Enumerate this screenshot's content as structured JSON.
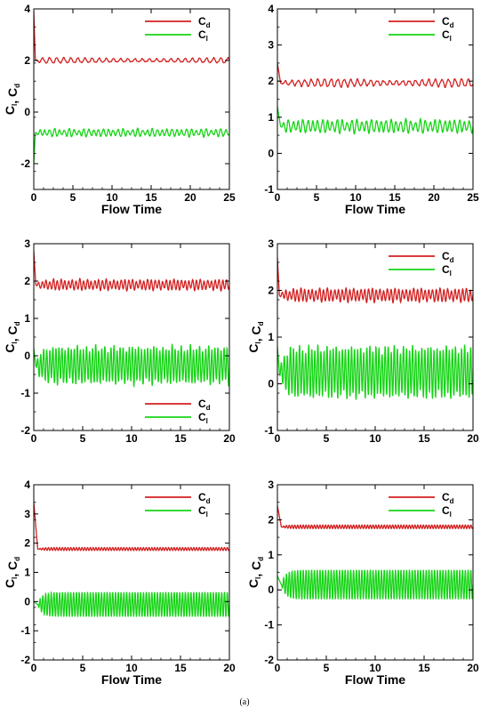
{
  "caption": "(a)",
  "colors": {
    "cd": "#d42020",
    "cl": "#16d416",
    "axis": "#000000"
  },
  "chart_data": [
    {
      "type": "line",
      "panel": "top-left",
      "xlabel": "Flow Time",
      "ylabel": "C_l, C_d",
      "xlim": [
        0,
        25
      ],
      "ylim": [
        -3,
        4
      ],
      "xticks": [
        0,
        5,
        10,
        15,
        20,
        25
      ],
      "yticks": [
        -2,
        0,
        2,
        4
      ],
      "legend": {
        "placement": "top-right"
      },
      "series": [
        {
          "name": "C_d",
          "key": "cd",
          "mean": 2.0,
          "amp": 0.08,
          "freq": 1.1,
          "noise": 0.05,
          "t0": 0.2,
          "spike": 3.9
        },
        {
          "name": "C_l",
          "key": "cl",
          "mean": -0.8,
          "amp": 0.12,
          "freq": 1.6,
          "noise": 0.06,
          "t0": 0.2,
          "spike": -2.0
        }
      ]
    },
    {
      "type": "line",
      "panel": "top-right",
      "xlabel": "Flow Time",
      "ylabel": "",
      "xlim": [
        0,
        25
      ],
      "ylim": [
        -1,
        4
      ],
      "xticks": [
        0,
        5,
        10,
        15,
        20,
        25
      ],
      "yticks": [
        -1,
        0,
        1,
        2,
        3,
        4
      ],
      "legend": {
        "placement": "top-right"
      },
      "series": [
        {
          "name": "C_d",
          "key": "cd",
          "mean": 1.95,
          "amp": 0.08,
          "freq": 1.2,
          "noise": 0.05,
          "t0": 0.4,
          "spike": 2.5
        },
        {
          "name": "C_l",
          "key": "cl",
          "mean": 0.75,
          "amp": 0.15,
          "freq": 1.6,
          "noise": 0.07,
          "t0": 0.4,
          "spike": 1.3
        }
      ]
    },
    {
      "type": "line",
      "panel": "middle-left",
      "xlabel": "",
      "ylabel": "C_l, C_d",
      "xlim": [
        0,
        20
      ],
      "ylim": [
        -2,
        3
      ],
      "xticks": [
        0,
        5,
        10,
        15,
        20
      ],
      "yticks": [
        -2,
        -1,
        0,
        1,
        2,
        3
      ],
      "legend": {
        "placement": "bottom-right"
      },
      "series": [
        {
          "name": "C_d",
          "key": "cd",
          "mean": 1.9,
          "amp": 0.12,
          "freq": 2.6,
          "noise": 0.05,
          "t0": 0.2,
          "spike": 2.8
        },
        {
          "name": "C_l",
          "key": "cl",
          "mean": -0.25,
          "amp": 0.45,
          "freq": 3.2,
          "noise": 0.12,
          "t0": 0.2,
          "spike": 0.2
        }
      ]
    },
    {
      "type": "line",
      "panel": "middle-right",
      "xlabel": "",
      "ylabel": "C_l, C_d",
      "xlim": [
        0,
        20
      ],
      "ylim": [
        -1,
        3
      ],
      "xticks": [
        0,
        5,
        10,
        15,
        20
      ],
      "yticks": [
        -1,
        0,
        1,
        2,
        3
      ],
      "legend": {
        "placement": "top-right"
      },
      "series": [
        {
          "name": "C_d",
          "key": "cd",
          "mean": 1.9,
          "amp": 0.12,
          "freq": 2.6,
          "noise": 0.05,
          "t0": 0.2,
          "spike": 2.7
        },
        {
          "name": "C_l",
          "key": "cl",
          "mean": 0.25,
          "amp": 0.5,
          "freq": 3.2,
          "noise": 0.12,
          "t0": 0.2,
          "spike": 0.8
        }
      ]
    },
    {
      "type": "line",
      "panel": "bottom-left",
      "xlabel": "Flow Time",
      "ylabel": "C_l, C_d",
      "xlim": [
        0,
        20
      ],
      "ylim": [
        -2,
        4
      ],
      "xticks": [
        0,
        5,
        10,
        15,
        20
      ],
      "yticks": [
        -2,
        -1,
        0,
        1,
        2,
        3,
        4
      ],
      "legend": {
        "placement": "top-right"
      },
      "series": [
        {
          "name": "C_d",
          "key": "cd",
          "mean": 1.8,
          "amp": 0.05,
          "freq": 3.5,
          "noise": 0.0,
          "t0": 0.4,
          "spike": 3.4
        },
        {
          "name": "C_l",
          "key": "cl",
          "mean": -0.1,
          "amp": 0.42,
          "freq": 3.5,
          "noise": 0.0,
          "t0": 0.4,
          "spike": 0.0
        }
      ]
    },
    {
      "type": "line",
      "panel": "bottom-right",
      "xlabel": "Flow Time",
      "ylabel": "C_l, C_d",
      "xlim": [
        0,
        20
      ],
      "ylim": [
        -2,
        3
      ],
      "xticks": [
        0,
        5,
        10,
        15,
        20
      ],
      "yticks": [
        -2,
        -1,
        0,
        1,
        2,
        3
      ],
      "legend": {
        "placement": "top-right"
      },
      "series": [
        {
          "name": "C_d",
          "key": "cd",
          "mean": 1.8,
          "amp": 0.05,
          "freq": 3.5,
          "noise": 0.0,
          "t0": 0.4,
          "spike": 2.4
        },
        {
          "name": "C_l",
          "key": "cl",
          "mean": 0.15,
          "amp": 0.42,
          "freq": 3.5,
          "noise": 0.0,
          "t0": 0.4,
          "spike": 0.4
        }
      ]
    }
  ]
}
